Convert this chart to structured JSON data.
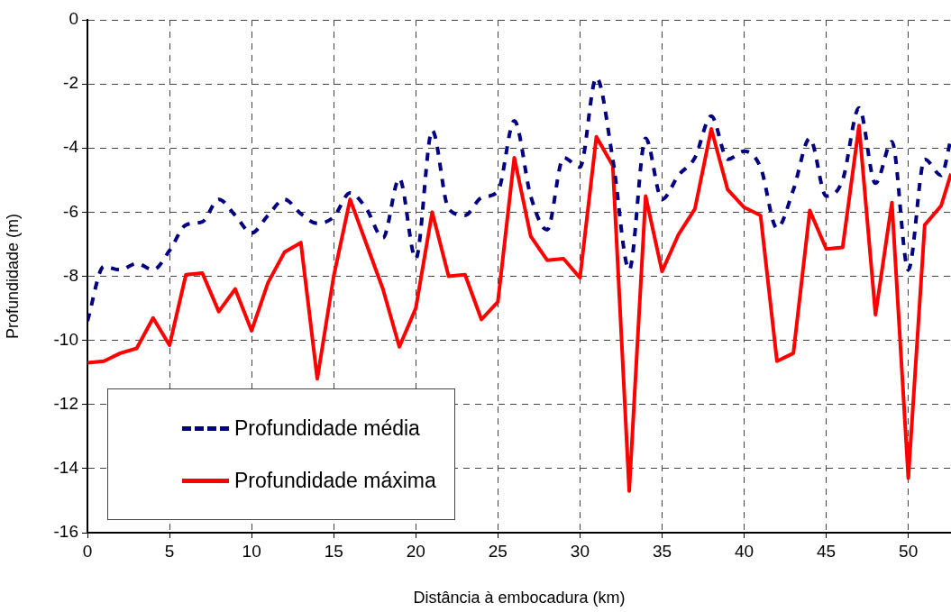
{
  "chart_data": {
    "type": "line",
    "xlabel": "Distância à embocadura (km)",
    "ylabel": "Profundidade (m)",
    "x": [
      0,
      1,
      2,
      3,
      4,
      5,
      6,
      7,
      8,
      9,
      10,
      11,
      12,
      13,
      14,
      15,
      16,
      17,
      18,
      19,
      20,
      21,
      22,
      23,
      24,
      25,
      26,
      27,
      28,
      29,
      30,
      31,
      32,
      33,
      34,
      35,
      36,
      37,
      38,
      39,
      40,
      41,
      42,
      43,
      44,
      45,
      46,
      47,
      48,
      49,
      50,
      51,
      52,
      52.6
    ],
    "series": [
      {
        "name": "Profundidade média",
        "color": "#000080",
        "line_style": "dashed",
        "values": [
          -9.4,
          -7.7,
          -7.8,
          -7.6,
          -7.8,
          -7.2,
          -6.4,
          -6.3,
          -5.6,
          -6.1,
          -6.65,
          -6.1,
          -5.6,
          -6.05,
          -6.35,
          -6.15,
          -5.4,
          -5.9,
          -6.8,
          -4.95,
          -7.45,
          -3.45,
          -5.9,
          -6.1,
          -5.55,
          -5.35,
          -3.15,
          -5.5,
          -6.55,
          -4.3,
          -4.6,
          -1.8,
          -4.35,
          -7.8,
          -3.7,
          -5.6,
          -4.85,
          -4.3,
          -3.0,
          -4.35,
          -4.1,
          -4.6,
          -6.5,
          -5.3,
          -3.7,
          -5.5,
          -5.0,
          -2.75,
          -5.1,
          -3.8,
          -7.8,
          -4.35,
          -4.85,
          -3.7
        ]
      },
      {
        "name": "Profundidade máxima",
        "color": "#ff0000",
        "line_style": "solid",
        "values": [
          -10.7,
          -10.65,
          -10.4,
          -10.25,
          -9.3,
          -10.15,
          -7.95,
          -7.9,
          -9.1,
          -8.4,
          -9.7,
          -8.2,
          -7.25,
          -6.95,
          -11.2,
          -8.0,
          -5.6,
          -7.0,
          -8.4,
          -10.2,
          -9.0,
          -6.0,
          -8.0,
          -7.95,
          -9.35,
          -8.8,
          -4.3,
          -6.75,
          -7.5,
          -7.45,
          -8.05,
          -3.65,
          -4.55,
          -14.7,
          -5.5,
          -7.85,
          -6.7,
          -5.9,
          -3.4,
          -5.3,
          -5.85,
          -6.1,
          -10.65,
          -10.4,
          -5.95,
          -7.15,
          -7.1,
          -3.3,
          -9.2,
          -5.7,
          -14.3,
          -6.4,
          -5.8,
          -4.8
        ]
      }
    ],
    "xlim": [
      0,
      52.6
    ],
    "xticks": [
      0,
      5,
      10,
      15,
      20,
      25,
      30,
      35,
      40,
      45,
      50
    ],
    "ylim": [
      -16,
      0
    ],
    "yticks": [
      -16,
      -14,
      -12,
      -10,
      -8,
      -6,
      -4,
      -2,
      0
    ],
    "grid": true,
    "legend": "bottom left",
    "marker": "none"
  }
}
